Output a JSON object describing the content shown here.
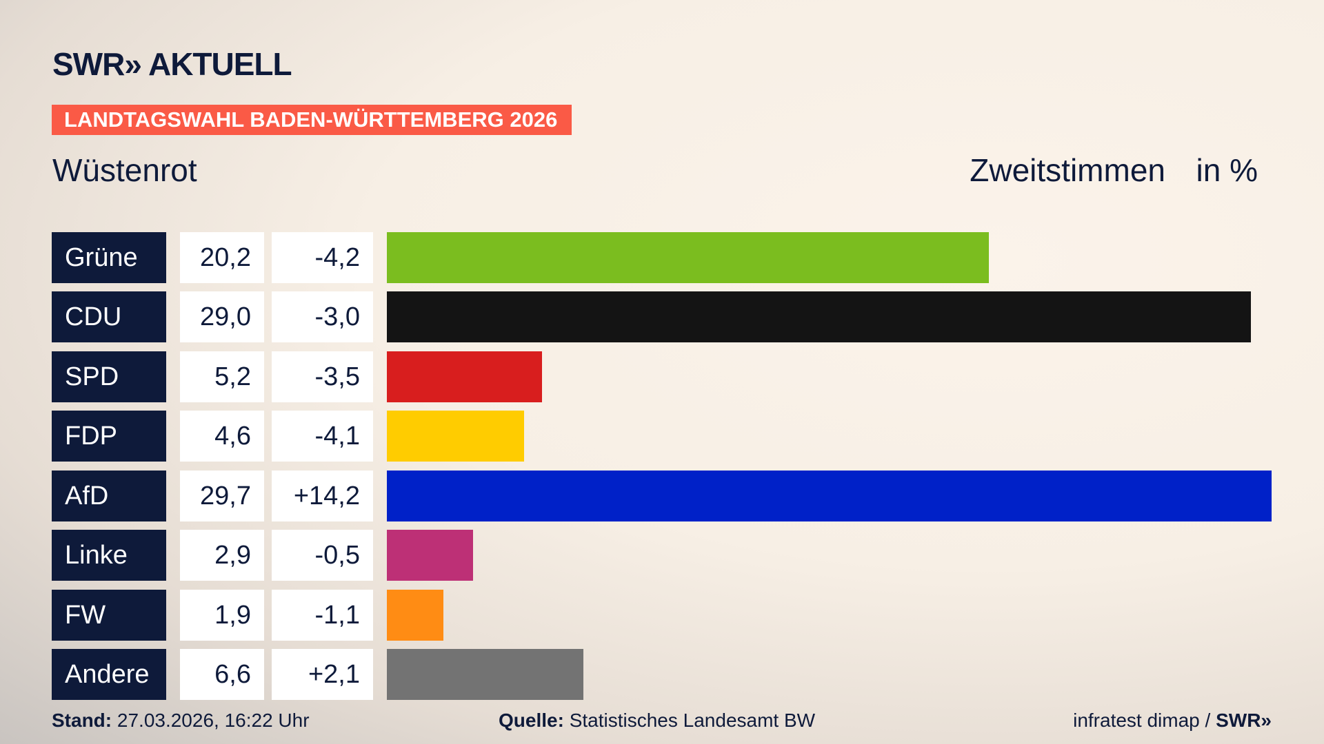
{
  "chart_data": {
    "type": "bar",
    "logo": "SWR» AKTUELL",
    "banner": "LANDTAGSWAHL BADEN-WÜRTTEMBERG 2026",
    "title": "Wüstenrot",
    "measure": "Zweitstimmen",
    "unit": "in %",
    "categories": [
      "Grüne",
      "CDU",
      "SPD",
      "FDP",
      "AfD",
      "Linke",
      "FW",
      "Andere"
    ],
    "values": [
      20.2,
      29.0,
      5.2,
      4.6,
      29.7,
      2.9,
      1.9,
      6.6
    ],
    "value_labels": [
      "20,2",
      "29,0",
      "5,2",
      "4,6",
      "29,7",
      "2,9",
      "1,9",
      "6,6"
    ],
    "changes": [
      -4.2,
      -3.0,
      -3.5,
      -4.1,
      14.2,
      -0.5,
      -1.1,
      2.1
    ],
    "change_labels": [
      "-4,2",
      "-3,0",
      "-3,5",
      "-4,1",
      "+14,2",
      "-0,5",
      "-1,1",
      "+2,1"
    ],
    "colors": [
      "#7bbd1f",
      "#141414",
      "#d81e1e",
      "#ffcc00",
      "#0021c8",
      "#bd3076",
      "#ff8c14",
      "#737373"
    ],
    "footer": {
      "stand_label": "Stand:",
      "stand": "27.03.2026, 16:22 Uhr",
      "source_label": "Quelle:",
      "source": "Statistisches Landesamt BW",
      "credit": "infratest dimap /",
      "credit_logo": "SWR»"
    }
  }
}
